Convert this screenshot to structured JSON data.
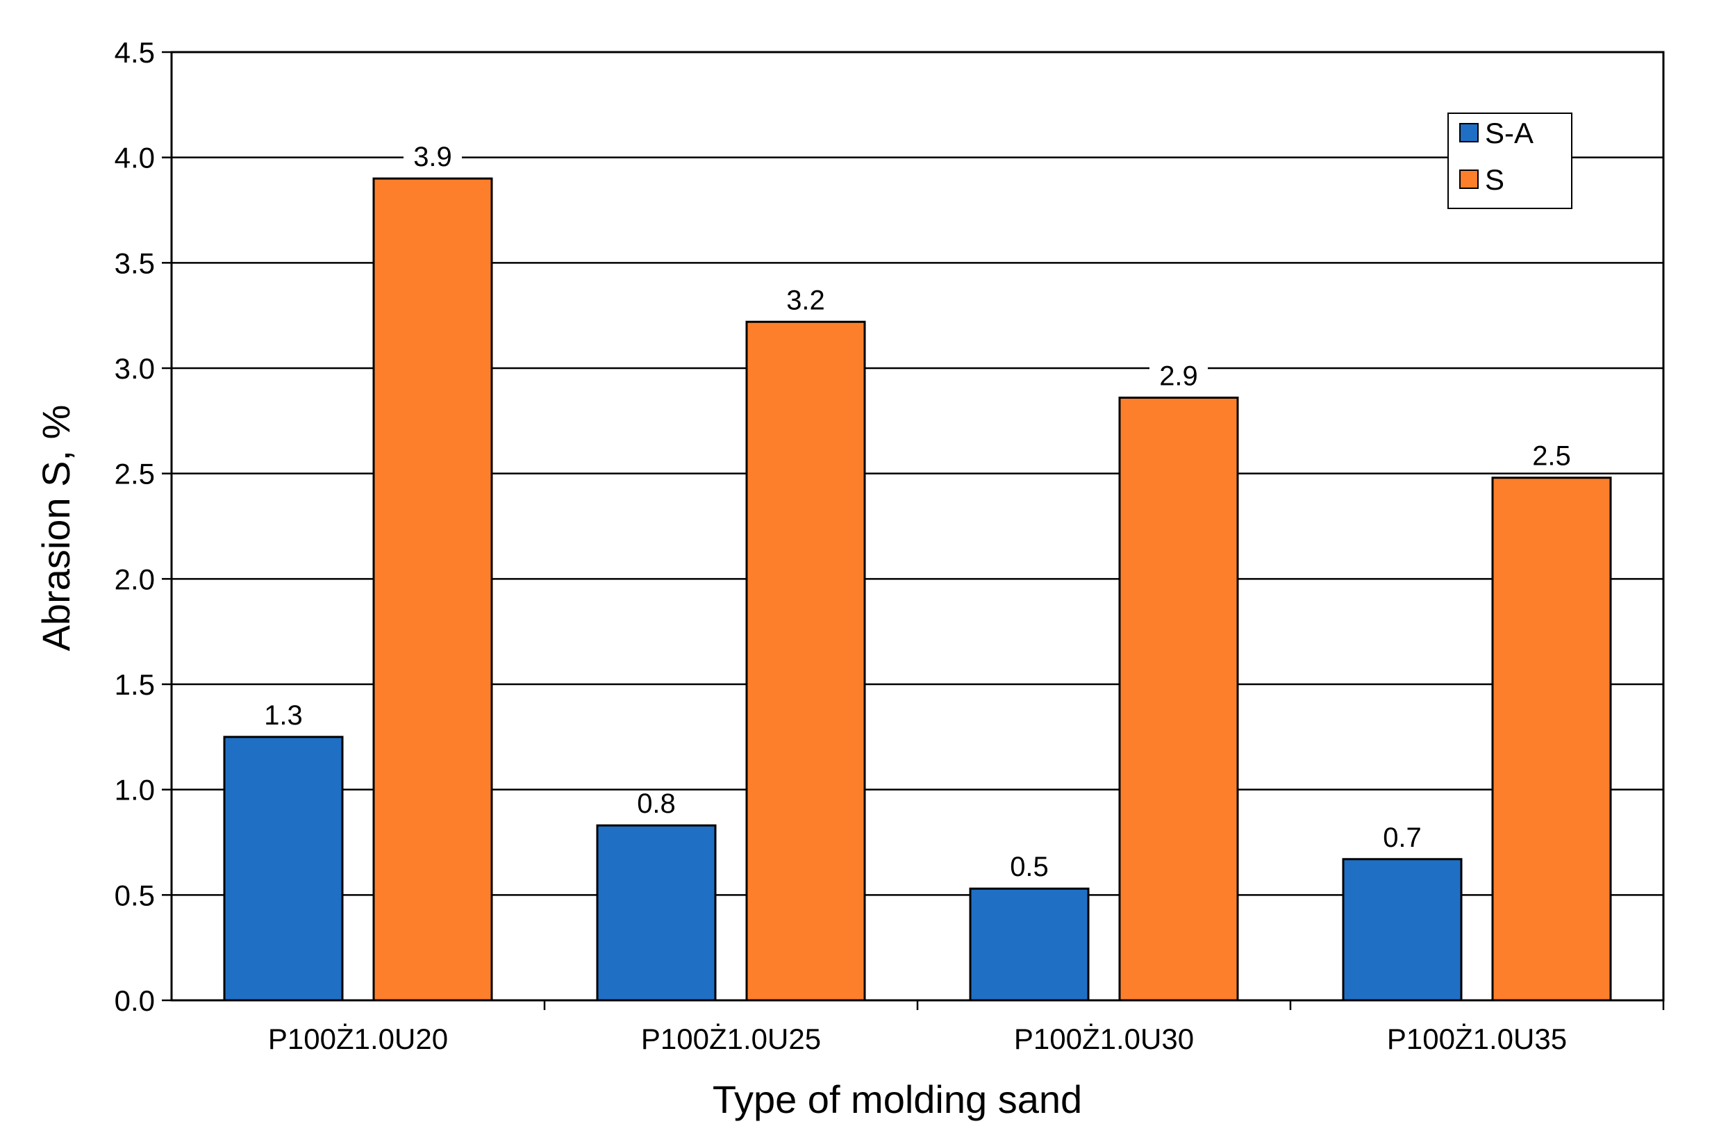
{
  "chart_data": {
    "type": "bar",
    "categories": [
      "P100Ż1.0U20",
      "P100Ż1.0U25",
      "P100Ż1.0U30",
      "P100Ż1.0U35"
    ],
    "series": [
      {
        "name": "S-A",
        "values": [
          1.25,
          0.83,
          0.53,
          0.67
        ],
        "labels": [
          "1.3",
          "0.8",
          "0.5",
          "0.7"
        ],
        "color": "#1f6fc5"
      },
      {
        "name": "S",
        "values": [
          3.9,
          3.22,
          2.86,
          2.48
        ],
        "labels": [
          "3.9",
          "3.2",
          "2.9",
          "2.5"
        ],
        "color": "#fd7f2b"
      }
    ],
    "xlabel": "Type of molding sand",
    "ylabel": "Abrasion S, %",
    "ylim": [
      0,
      4.5
    ],
    "yticks": [
      "0.0",
      "0.5",
      "1.0",
      "1.5",
      "2.0",
      "2.5",
      "3.0",
      "3.5",
      "4.0",
      "4.5"
    ],
    "grid": true,
    "legend_position": "top-right"
  }
}
